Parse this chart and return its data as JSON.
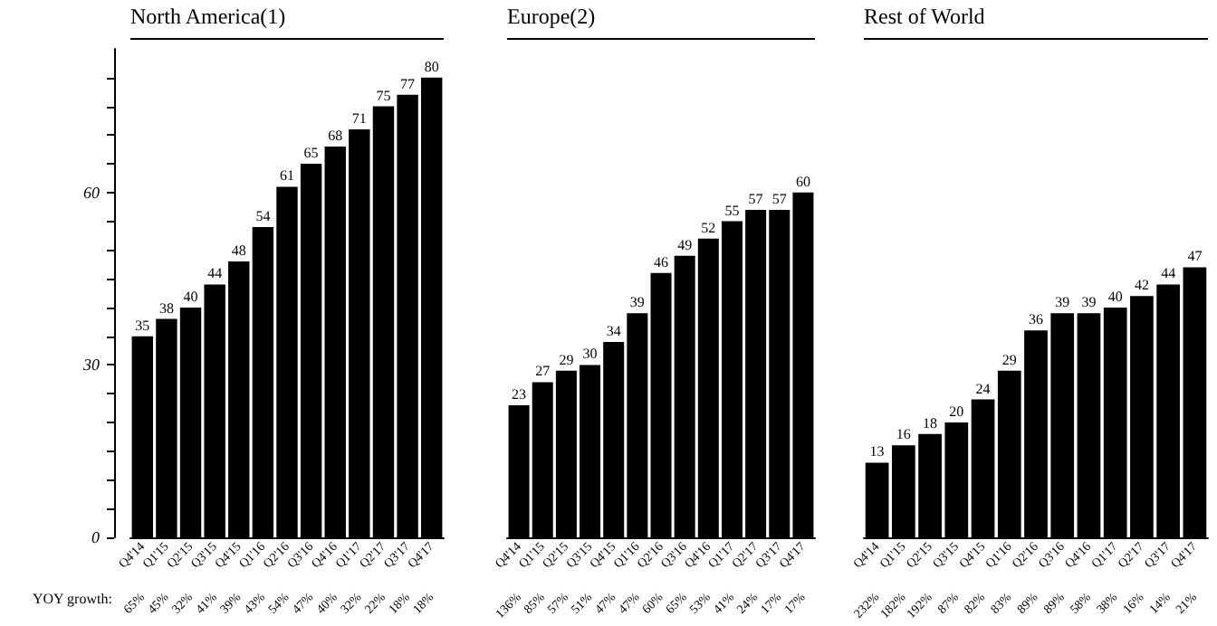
{
  "chart_data": [
    {
      "type": "bar",
      "title": "North America(1)",
      "categories": [
        "Q4'14",
        "Q1'15",
        "Q2'15",
        "Q3'15",
        "Q4'15",
        "Q1'16",
        "Q2'16",
        "Q3'16",
        "Q4'16",
        "Q1'17",
        "Q2'17",
        "Q3'17",
        "Q4'17"
      ],
      "values": [
        35,
        38,
        40,
        44,
        48,
        54,
        61,
        65,
        68,
        71,
        75,
        77,
        80
      ],
      "color": "#000000",
      "data_labels": true,
      "grid": false,
      "ylim": [
        0,
        85
      ],
      "yticks": [
        0,
        {
          "value": 5,
          "label": null
        },
        {
          "value": 10,
          "label": null
        },
        {
          "value": 15,
          "label": null
        },
        {
          "value": 20,
          "label": null
        },
        {
          "value": 25,
          "label": null
        },
        30,
        {
          "value": 35,
          "label": null
        },
        {
          "value": 40,
          "label": null
        },
        {
          "value": 45,
          "label": null
        },
        {
          "value": 50,
          "label": null
        },
        {
          "value": 55,
          "label": null
        },
        60,
        {
          "value": 65,
          "label": null
        },
        {
          "value": 70,
          "label": null
        },
        {
          "value": 75,
          "label": null
        },
        {
          "value": 80,
          "label": null
        }
      ],
      "annotations": [
        "YOY growth:",
        "65%",
        "45%",
        "32%",
        "41%",
        "39%",
        "43%",
        "54%",
        "47%",
        "40%",
        "32%",
        "22%",
        "18%",
        "18%"
      ]
    },
    {
      "type": "bar",
      "title": "Europe(2)",
      "categories": [
        "Q4'14",
        "Q1'15",
        "Q2'15",
        "Q3'15",
        "Q4'15",
        "Q1'16",
        "Q2'16",
        "Q3'16",
        "Q4'16",
        "Q1'17",
        "Q2'17",
        "Q3'17",
        "Q4'17"
      ],
      "values": [
        23,
        27,
        29,
        30,
        34,
        39,
        46,
        49,
        52,
        55,
        57,
        57,
        60
      ],
      "color": "#000000",
      "data_labels": true,
      "grid": false,
      "tick_labels": "x",
      "annotations": [
        "136%",
        "85%",
        "57%",
        "51%",
        "47%",
        "47%",
        "60%",
        "65%",
        "53%",
        "41%",
        "24%",
        "17%",
        "17%"
      ]
    },
    {
      "type": "bar",
      "title": "Rest of World",
      "categories": [
        "Q4'14",
        "Q1'15",
        "Q2'15",
        "Q3'15",
        "Q4'15",
        "Q1'16",
        "Q2'16",
        "Q3'16",
        "Q4'16",
        "Q1'17",
        "Q2'17",
        "Q3'17",
        "Q4'17"
      ],
      "values": [
        13,
        16,
        18,
        20,
        24,
        29,
        36,
        39,
        39,
        40,
        42,
        44,
        47
      ],
      "color": "#000000",
      "data_labels": true,
      "grid": false,
      "tick_labels": "x",
      "annotations": [
        "232%",
        "182%",
        "192%",
        "87%",
        "82%",
        "83%",
        "89%",
        "89%",
        "58%",
        "38%",
        "16%",
        "14%",
        "21%"
      ]
    }
  ]
}
